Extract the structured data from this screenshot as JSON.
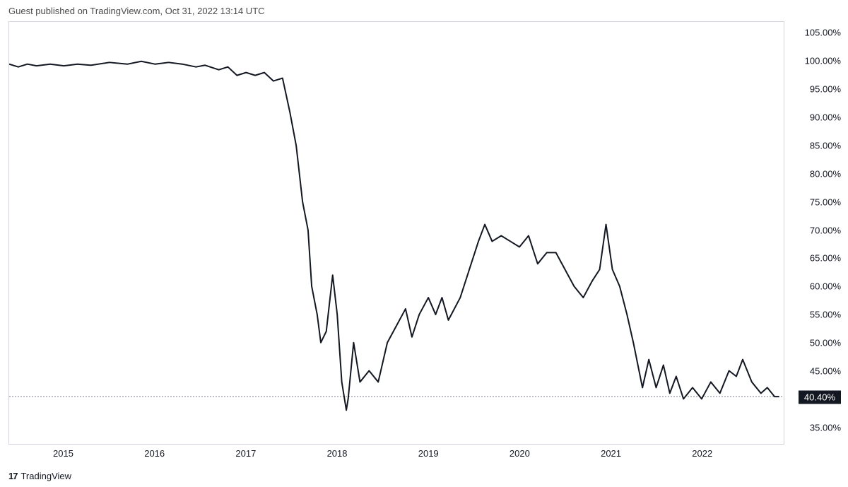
{
  "header": {
    "text": "Guest published on TradingView.com, Oct 31, 2022 13:14 UTC"
  },
  "footer": {
    "logo_text": "17",
    "brand": "TradingView"
  },
  "chart": {
    "type": "line",
    "background_color": "#ffffff",
    "border_color": "#d1d4dc",
    "line_color": "#131722",
    "line_width": 2,
    "dotted_line_color": "#787b86",
    "label_color": "#131722",
    "label_fontsize": 13,
    "current_value": 40.4,
    "current_value_label": "40.40%",
    "current_label_bg": "#131722",
    "current_label_fg": "#ffffff",
    "y_axis": {
      "min": 32.0,
      "max": 107.0,
      "ticks": [
        35.0,
        40.0,
        45.0,
        50.0,
        55.0,
        60.0,
        65.0,
        70.0,
        75.0,
        80.0,
        85.0,
        90.0,
        95.0,
        100.0,
        105.0
      ],
      "tick_labels": [
        "35.00%",
        "40.00%",
        "45.00%",
        "50.00%",
        "55.00%",
        "60.00%",
        "65.00%",
        "70.00%",
        "75.00%",
        "80.00%",
        "85.00%",
        "90.00%",
        "95.00%",
        "100.00%",
        "105.00%"
      ]
    },
    "x_axis": {
      "min": 2014.4,
      "max": 2022.9,
      "ticks": [
        2015,
        2016,
        2017,
        2018,
        2019,
        2020,
        2021,
        2022
      ],
      "tick_labels": [
        "2015",
        "2016",
        "2017",
        "2018",
        "2019",
        "2020",
        "2021",
        "2022"
      ]
    },
    "series": [
      {
        "x": 2014.4,
        "y": 99.5
      },
      {
        "x": 2014.5,
        "y": 99.0
      },
      {
        "x": 2014.6,
        "y": 99.5
      },
      {
        "x": 2014.7,
        "y": 99.2
      },
      {
        "x": 2014.85,
        "y": 99.5
      },
      {
        "x": 2015.0,
        "y": 99.2
      },
      {
        "x": 2015.15,
        "y": 99.5
      },
      {
        "x": 2015.3,
        "y": 99.3
      },
      {
        "x": 2015.5,
        "y": 99.8
      },
      {
        "x": 2015.7,
        "y": 99.5
      },
      {
        "x": 2015.85,
        "y": 100.0
      },
      {
        "x": 2016.0,
        "y": 99.5
      },
      {
        "x": 2016.15,
        "y": 99.8
      },
      {
        "x": 2016.3,
        "y": 99.5
      },
      {
        "x": 2016.45,
        "y": 99.0
      },
      {
        "x": 2016.55,
        "y": 99.3
      },
      {
        "x": 2016.7,
        "y": 98.5
      },
      {
        "x": 2016.8,
        "y": 99.0
      },
      {
        "x": 2016.9,
        "y": 97.5
      },
      {
        "x": 2017.0,
        "y": 98.0
      },
      {
        "x": 2017.1,
        "y": 97.5
      },
      {
        "x": 2017.2,
        "y": 98.0
      },
      {
        "x": 2017.3,
        "y": 96.5
      },
      {
        "x": 2017.4,
        "y": 97.0
      },
      {
        "x": 2017.48,
        "y": 91.0
      },
      {
        "x": 2017.55,
        "y": 85.0
      },
      {
        "x": 2017.62,
        "y": 75.0
      },
      {
        "x": 2017.68,
        "y": 70.0
      },
      {
        "x": 2017.72,
        "y": 60.0
      },
      {
        "x": 2017.78,
        "y": 55.0
      },
      {
        "x": 2017.82,
        "y": 50.0
      },
      {
        "x": 2017.88,
        "y": 52.0
      },
      {
        "x": 2017.95,
        "y": 62.0
      },
      {
        "x": 2018.0,
        "y": 55.0
      },
      {
        "x": 2018.05,
        "y": 43.0
      },
      {
        "x": 2018.1,
        "y": 38.0
      },
      {
        "x": 2018.12,
        "y": 40.0
      },
      {
        "x": 2018.18,
        "y": 50.0
      },
      {
        "x": 2018.25,
        "y": 43.0
      },
      {
        "x": 2018.35,
        "y": 45.0
      },
      {
        "x": 2018.45,
        "y": 43.0
      },
      {
        "x": 2018.55,
        "y": 50.0
      },
      {
        "x": 2018.65,
        "y": 53.0
      },
      {
        "x": 2018.75,
        "y": 56.0
      },
      {
        "x": 2018.82,
        "y": 51.0
      },
      {
        "x": 2018.9,
        "y": 55.0
      },
      {
        "x": 2019.0,
        "y": 58.0
      },
      {
        "x": 2019.08,
        "y": 55.0
      },
      {
        "x": 2019.15,
        "y": 58.0
      },
      {
        "x": 2019.22,
        "y": 54.0
      },
      {
        "x": 2019.35,
        "y": 58.0
      },
      {
        "x": 2019.45,
        "y": 63.0
      },
      {
        "x": 2019.55,
        "y": 68.0
      },
      {
        "x": 2019.62,
        "y": 71.0
      },
      {
        "x": 2019.7,
        "y": 68.0
      },
      {
        "x": 2019.8,
        "y": 69.0
      },
      {
        "x": 2019.9,
        "y": 68.0
      },
      {
        "x": 2020.0,
        "y": 67.0
      },
      {
        "x": 2020.1,
        "y": 69.0
      },
      {
        "x": 2020.2,
        "y": 64.0
      },
      {
        "x": 2020.3,
        "y": 66.0
      },
      {
        "x": 2020.4,
        "y": 66.0
      },
      {
        "x": 2020.5,
        "y": 63.0
      },
      {
        "x": 2020.6,
        "y": 60.0
      },
      {
        "x": 2020.7,
        "y": 58.0
      },
      {
        "x": 2020.8,
        "y": 61.0
      },
      {
        "x": 2020.88,
        "y": 63.0
      },
      {
        "x": 2020.95,
        "y": 71.0
      },
      {
        "x": 2021.02,
        "y": 63.0
      },
      {
        "x": 2021.1,
        "y": 60.0
      },
      {
        "x": 2021.18,
        "y": 55.0
      },
      {
        "x": 2021.25,
        "y": 50.0
      },
      {
        "x": 2021.3,
        "y": 46.0
      },
      {
        "x": 2021.35,
        "y": 42.0
      },
      {
        "x": 2021.42,
        "y": 47.0
      },
      {
        "x": 2021.5,
        "y": 42.0
      },
      {
        "x": 2021.58,
        "y": 46.0
      },
      {
        "x": 2021.65,
        "y": 41.0
      },
      {
        "x": 2021.72,
        "y": 44.0
      },
      {
        "x": 2021.8,
        "y": 40.0
      },
      {
        "x": 2021.9,
        "y": 42.0
      },
      {
        "x": 2022.0,
        "y": 40.0
      },
      {
        "x": 2022.1,
        "y": 43.0
      },
      {
        "x": 2022.2,
        "y": 41.0
      },
      {
        "x": 2022.3,
        "y": 45.0
      },
      {
        "x": 2022.38,
        "y": 44.0
      },
      {
        "x": 2022.45,
        "y": 47.0
      },
      {
        "x": 2022.55,
        "y": 43.0
      },
      {
        "x": 2022.65,
        "y": 41.0
      },
      {
        "x": 2022.72,
        "y": 42.0
      },
      {
        "x": 2022.8,
        "y": 40.4
      },
      {
        "x": 2022.85,
        "y": 40.4
      }
    ]
  }
}
